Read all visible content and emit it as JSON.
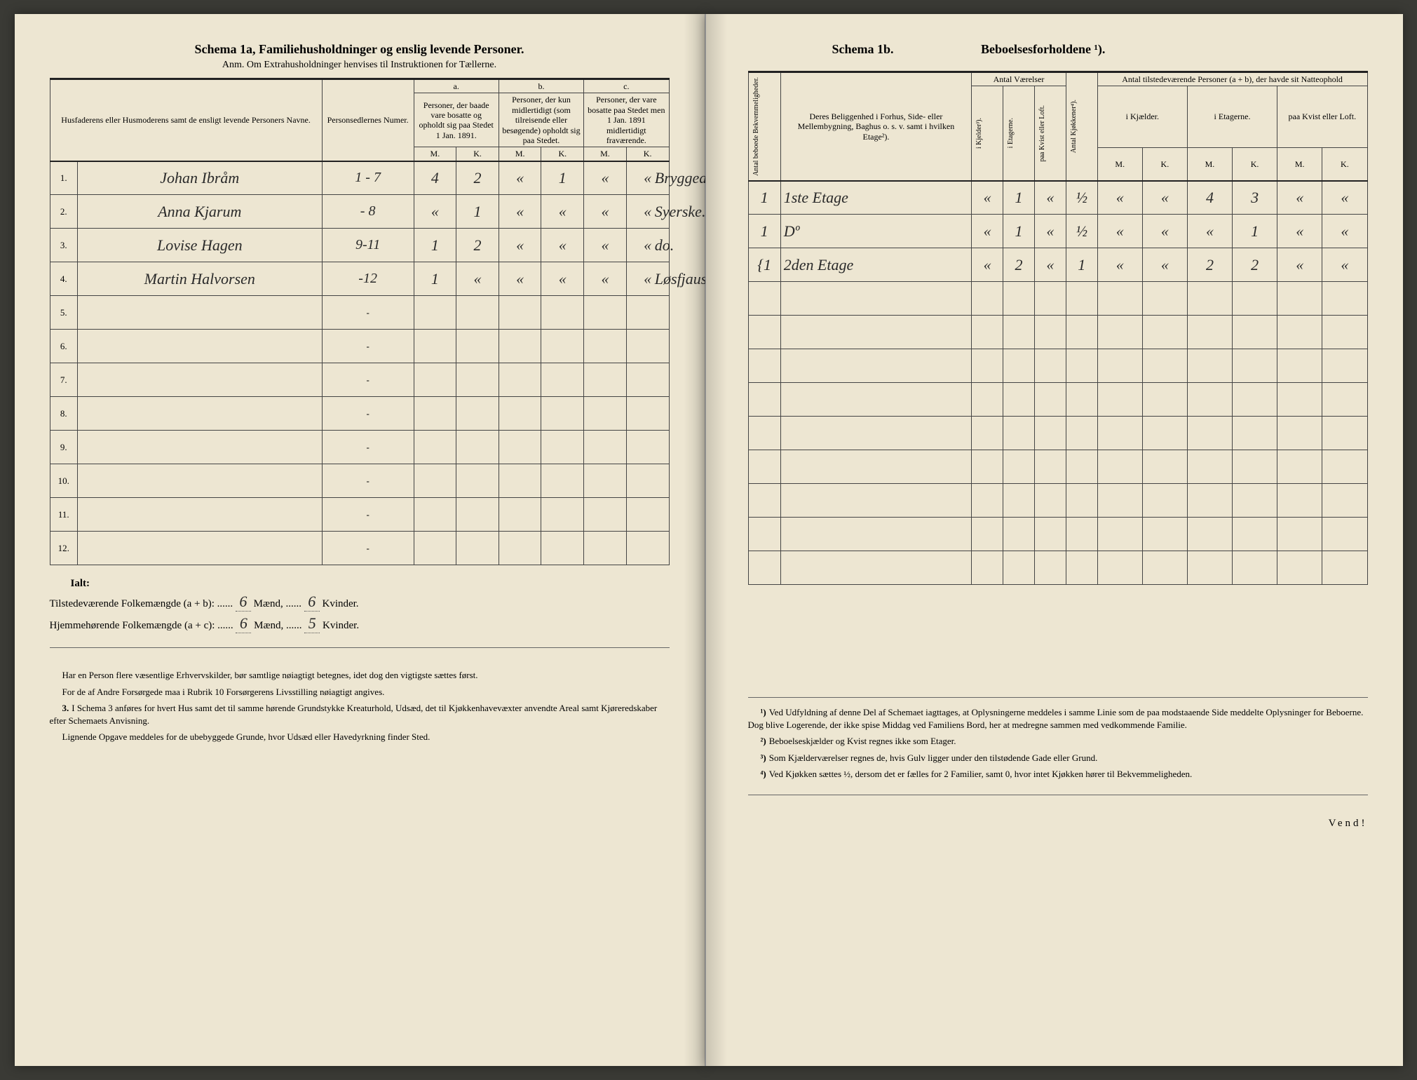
{
  "colors": {
    "paper": "#ede6d2",
    "ink_print": "#333333",
    "ink_hand": "#2a2a2a",
    "rule": "#444444",
    "rule_heavy": "#222222",
    "background": "#3a3a35"
  },
  "left": {
    "title": "Schema 1a, Familiehusholdninger og enslig levende Personer.",
    "subtitle": "Anm. Om Extrahusholdninger henvises til Instruktionen for Tællerne.",
    "head": {
      "name": "Husfaderens eller Husmoderens samt de ensligt levende Personers Navne.",
      "numer": "Personsedlernes Numer.",
      "a_label": "a.",
      "a_text": "Personer, der baade vare bosatte og opholdt sig paa Stedet 1 Jan. 1891.",
      "b_label": "b.",
      "b_text": "Personer, der kun midlertidigt (som tilreisende eller besøgende) opholdt sig paa Stedet.",
      "c_label": "c.",
      "c_text": "Personer, der vare bosatte paa Stedet men 1 Jan. 1891 midlertidigt fraværende.",
      "M": "M.",
      "K": "K."
    },
    "rows": [
      {
        "n": "1.",
        "name": "Johan Ibråm",
        "numer": "1 - 7",
        "aM": "4",
        "aK": "2",
        "bM": "«",
        "bK": "1",
        "cM": "«",
        "cK": "«",
        "occ": "Bryggearb."
      },
      {
        "n": "2.",
        "name": "Anna Kjarum",
        "numer": "- 8",
        "aM": "«",
        "aK": "1",
        "bM": "«",
        "bK": "«",
        "cM": "«",
        "cK": "«",
        "occ": "Syerske."
      },
      {
        "n": "3.",
        "name": "Lovise Hagen",
        "numer": "9-11",
        "aM": "1",
        "aK": "2",
        "bM": "«",
        "bK": "«",
        "cM": "«",
        "cK": "«",
        "occ": "do."
      },
      {
        "n": "4.",
        "name": "Martin Halvorsen",
        "numer": "-12",
        "aM": "1",
        "aK": "«",
        "bM": "«",
        "bK": "«",
        "cM": "«",
        "cK": "«",
        "occ": "Løsfjauser"
      }
    ],
    "empty_rows": [
      "5.",
      "6.",
      "7.",
      "8.",
      "9.",
      "10.",
      "11.",
      "12."
    ],
    "totals": {
      "ialt": "Ialt:",
      "line1_label": "Tilstedeværende Folkemængde (a + b): ......",
      "line1_maend": "6",
      "line1_mid": "Mænd, ......",
      "line1_kv": "6",
      "line1_end": "Kvinder.",
      "line2_label": "Hjemmehørende Folkemængde (a + c): ......",
      "line2_maend": "6",
      "line2_mid": "Mænd, ......",
      "line2_kv": "5",
      "line2_end": "Kvinder."
    },
    "foot": {
      "p1": "Har en Person flere væsentlige Erhvervskilder, bør samtlige nøiagtigt betegnes, idet dog den vigtigste sættes først.",
      "p2": "For de af Andre Forsørgede maa i Rubrik 10 Forsørgerens Livsstilling nøiagtigt angives.",
      "p3n": "3.",
      "p3": "I Schema 3 anføres for hvert Hus samt det til samme hørende Grundstykke Kreaturhold, Udsæd, det til Kjøkkenhavevæxter anvendte Areal samt Kjøreredskaber efter Schemaets Anvisning.",
      "p4": "Lignende Opgave meddeles for de ubebyggede Grunde, hvor Udsæd eller Havedyrkning finder Sted."
    }
  },
  "right": {
    "title_a": "Schema 1b.",
    "title_b": "Beboelsesforholdene ¹).",
    "head": {
      "bekv": "Antal beboede Bekvemmeligheder.",
      "belig": "Deres Beliggenhed i Forhus, Side- eller Mellembygning, Baghus o. s. v. samt i hvilken Etage²).",
      "vaerelser": "Antal Værelser",
      "kjokken": "Antal Kjøkkener⁴).",
      "natt": "Antal tilstedeværende Personer (a + b), der havde sit Natteophold",
      "i_kj": "i Kjelder³).",
      "i_et": "i Etagerne.",
      "paa_kv": "paa Kvist eller Loft.",
      "sub_kj": "i Kjælder.",
      "sub_et": "i Etagerne.",
      "sub_lo": "paa Kvist eller Loft.",
      "M": "M.",
      "K": "K."
    },
    "rows": [
      {
        "bekv": "1",
        "belig": "1ste Etage",
        "kj": "«",
        "et": "1",
        "lo": "«",
        "kjok": "½",
        "nkjM": "«",
        "nkjK": "«",
        "netM": "4",
        "netK": "3",
        "nloM": "«",
        "nloK": "«"
      },
      {
        "bekv": "1",
        "belig": "Dº",
        "kj": "«",
        "et": "1",
        "lo": "«",
        "kjok": "½",
        "nkjM": "«",
        "nkjK": "«",
        "netM": "«",
        "netK": "1",
        "nloM": "«",
        "nloK": "«"
      },
      {
        "bekv": "{1",
        "belig": "2den Etage",
        "kj": "«",
        "et": "2",
        "lo": "«",
        "kjok": "1",
        "nkjM": "«",
        "nkjK": "«",
        "netM": "2",
        "netK": "2",
        "nloM": "«",
        "nloK": "«"
      }
    ],
    "foot": {
      "p1n": "¹)",
      "p1": "Ved Udfyldning af denne Del af Schemaet iagttages, at Oplysningerne meddeles i samme Linie som de paa modstaaende Side meddelte Oplysninger for Beboerne. Dog blive Logerende, der ikke spise Middag ved Familiens Bord, her at medregne sammen med vedkommende Familie.",
      "p2n": "²)",
      "p2": "Beboelseskjælder og Kvist regnes ikke som Etager.",
      "p3n": "³)",
      "p3": "Som Kjælderværelser regnes de, hvis Gulv ligger under den tilstødende Gade eller Grund.",
      "p4n": "⁴)",
      "p4": "Ved Kjøkken sættes ½, dersom det er fælles for 2 Familier, samt 0, hvor intet Kjøkken hører til Bekvemmeligheden.",
      "vend": "Vend!"
    }
  }
}
